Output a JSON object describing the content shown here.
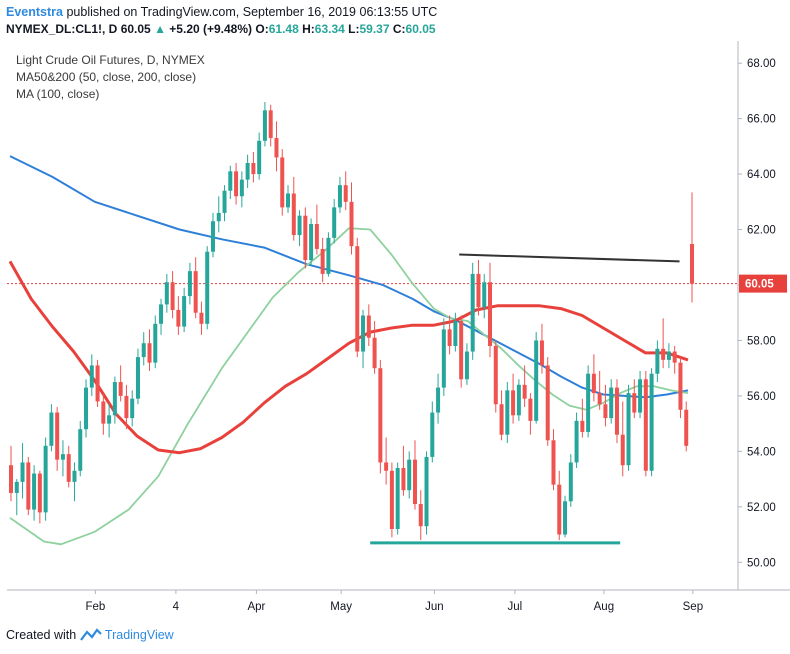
{
  "header": {
    "author": "Eventstra",
    "published": "published on TradingView.com, September 16, 2019 06:13:55 UTC",
    "symbol": "NYMEX_DL:CL1!, D",
    "last": "60.05",
    "change_arrow": "▲",
    "change": "+5.20 (+9.48%)",
    "o_label": "O:",
    "o_value": "61.48",
    "h_label": "H:",
    "h_value": "63.34",
    "l_label": "L:",
    "l_value": "59.37",
    "c_label": "C:",
    "c_value": "60.05"
  },
  "legend": {
    "title": "Light Crude Oil Futures, D, NYMEX",
    "ma50_200": "MA50&200 (50, close, 200, close)",
    "ma100": "MA (100, close)"
  },
  "footer": {
    "created_with": "Created with",
    "brand": "TradingView"
  },
  "colors": {
    "up": "#26a69a",
    "down": "#ef5350",
    "ma50": "#8fd19e",
    "ma200": "#2e7fd8",
    "ma100": "#e8413c",
    "resistance": "#333333",
    "support": "#26a69a",
    "price_line": "#e8413c"
  },
  "chart_data": {
    "type": "candlestick",
    "title": "Light Crude Oil Futures, D, NYMEX",
    "ylim": [
      49,
      68.8
    ],
    "y_ticks": [
      "68.00",
      "66.00",
      "64.00",
      "62.00",
      "60.00",
      "58.00",
      "56.00",
      "54.00",
      "52.00",
      "50.00"
    ],
    "x_ticks": [
      {
        "label": "Feb",
        "t": 10
      },
      {
        "label": "4",
        "t": 29
      },
      {
        "label": "Apr",
        "t": 48
      },
      {
        "label": "May",
        "t": 68
      },
      {
        "label": "Jun",
        "t": 90
      },
      {
        "label": "Jul",
        "t": 109
      },
      {
        "label": "Aug",
        "t": 130
      },
      {
        "label": "Sep",
        "t": 151
      }
    ],
    "last_price": 60.05,
    "last_price_label": "60.05",
    "series": [
      {
        "name": "MA 200",
        "points": [
          [
            0,
            64.65
          ],
          [
            10,
            63.9
          ],
          [
            20,
            63.0
          ],
          [
            30,
            62.5
          ],
          [
            40,
            62.0
          ],
          [
            50,
            61.65
          ],
          [
            60,
            61.35
          ],
          [
            70,
            60.75
          ],
          [
            80,
            60.35
          ],
          [
            88,
            60.0
          ],
          [
            95,
            59.5
          ],
          [
            100,
            59.05
          ],
          [
            105,
            58.75
          ],
          [
            110,
            58.35
          ],
          [
            115,
            57.95
          ],
          [
            120,
            57.55
          ],
          [
            125,
            57.15
          ],
          [
            130,
            56.7
          ],
          [
            135,
            56.3
          ],
          [
            140,
            56.05
          ],
          [
            145,
            56.0
          ],
          [
            150,
            55.95
          ],
          [
            155,
            56.05
          ],
          [
            160,
            56.2
          ]
        ]
      },
      {
        "name": "MA 50",
        "points": [
          [
            0,
            51.6
          ],
          [
            8,
            50.75
          ],
          [
            12,
            50.65
          ],
          [
            20,
            51.1
          ],
          [
            28,
            51.9
          ],
          [
            35,
            53.1
          ],
          [
            42,
            55.0
          ],
          [
            50,
            57.0
          ],
          [
            58,
            58.7
          ],
          [
            62,
            59.55
          ],
          [
            68,
            60.45
          ],
          [
            74,
            61.2
          ],
          [
            80,
            62.05
          ],
          [
            85,
            62.0
          ],
          [
            90,
            61.1
          ],
          [
            95,
            60.05
          ],
          [
            100,
            59.15
          ],
          [
            104,
            58.8
          ],
          [
            108,
            58.7
          ],
          [
            112,
            58.2
          ],
          [
            116,
            57.7
          ],
          [
            120,
            57.1
          ],
          [
            124,
            56.55
          ],
          [
            128,
            56.05
          ],
          [
            132,
            55.65
          ],
          [
            136,
            55.5
          ],
          [
            140,
            55.75
          ],
          [
            144,
            56.1
          ],
          [
            148,
            56.35
          ],
          [
            152,
            56.35
          ],
          [
            156,
            56.2
          ],
          [
            160,
            56.1
          ]
        ]
      },
      {
        "name": "MA 100",
        "points": [
          [
            0,
            60.85
          ],
          [
            5,
            59.5
          ],
          [
            10,
            58.5
          ],
          [
            15,
            57.6
          ],
          [
            20,
            56.55
          ],
          [
            25,
            55.35
          ],
          [
            30,
            54.55
          ],
          [
            35,
            54.05
          ],
          [
            40,
            53.95
          ],
          [
            45,
            54.1
          ],
          [
            50,
            54.5
          ],
          [
            55,
            55.05
          ],
          [
            60,
            55.75
          ],
          [
            65,
            56.35
          ],
          [
            70,
            56.8
          ],
          [
            75,
            57.35
          ],
          [
            80,
            57.9
          ],
          [
            85,
            58.3
          ],
          [
            90,
            58.45
          ],
          [
            95,
            58.55
          ],
          [
            100,
            58.55
          ],
          [
            105,
            58.7
          ],
          [
            110,
            59.1
          ],
          [
            115,
            59.25
          ],
          [
            120,
            59.25
          ],
          [
            125,
            59.25
          ],
          [
            130,
            59.15
          ],
          [
            135,
            58.9
          ],
          [
            140,
            58.45
          ],
          [
            145,
            58.0
          ],
          [
            150,
            57.55
          ],
          [
            155,
            57.55
          ],
          [
            158,
            57.4
          ],
          [
            160,
            57.3
          ]
        ]
      }
    ],
    "resistance": {
      "t1": 106,
      "t2": 158,
      "y1": 61.1,
      "y2": 60.85
    },
    "support": {
      "t1": 85,
      "t2": 144,
      "y": 50.7
    },
    "ohlc": [
      [
        53.5,
        54.2,
        52.2,
        52.5
      ],
      [
        52.5,
        53.0,
        51.7,
        52.9
      ],
      [
        52.9,
        54.3,
        52.3,
        53.6
      ],
      [
        53.6,
        53.8,
        51.7,
        51.9
      ],
      [
        51.9,
        53.5,
        51.5,
        53.2
      ],
      [
        53.2,
        53.3,
        51.4,
        51.8
      ],
      [
        51.8,
        54.5,
        51.5,
        54.2
      ],
      [
        54.2,
        55.7,
        54.0,
        55.4
      ],
      [
        55.4,
        55.6,
        53.3,
        53.7
      ],
      [
        53.7,
        54.4,
        53.1,
        53.9
      ],
      [
        53.9,
        54.2,
        52.7,
        52.9
      ],
      [
        52.9,
        53.6,
        52.2,
        53.3
      ],
      [
        53.3,
        55.1,
        53.1,
        54.8
      ],
      [
        54.8,
        56.6,
        54.5,
        56.3
      ],
      [
        56.3,
        57.5,
        56.0,
        57.1
      ],
      [
        57.1,
        57.3,
        55.6,
        55.8
      ],
      [
        55.8,
        56.1,
        54.6,
        55.0
      ],
      [
        55.0,
        55.7,
        54.5,
        55.3
      ],
      [
        55.3,
        56.7,
        55.0,
        56.5
      ],
      [
        56.5,
        57.1,
        55.8,
        56.0
      ],
      [
        56.0,
        56.4,
        54.8,
        55.2
      ],
      [
        55.2,
        56.2,
        54.9,
        55.9
      ],
      [
        55.9,
        57.7,
        55.7,
        57.4
      ],
      [
        57.4,
        58.3,
        57.1,
        57.9
      ],
      [
        57.9,
        58.4,
        56.9,
        57.2
      ],
      [
        57.2,
        58.9,
        57.0,
        58.6
      ],
      [
        58.6,
        59.5,
        58.2,
        59.3
      ],
      [
        59.3,
        60.4,
        59.0,
        60.1
      ],
      [
        60.1,
        60.5,
        58.8,
        59.1
      ],
      [
        59.1,
        59.6,
        58.2,
        58.5
      ],
      [
        58.5,
        59.9,
        58.3,
        59.6
      ],
      [
        59.6,
        60.8,
        59.3,
        60.5
      ],
      [
        60.5,
        61.0,
        58.8,
        59.0
      ],
      [
        59.0,
        59.4,
        58.2,
        58.6
      ],
      [
        58.6,
        61.4,
        58.4,
        61.2
      ],
      [
        61.2,
        62.6,
        61.0,
        62.3
      ],
      [
        62.3,
        63.2,
        61.9,
        62.6
      ],
      [
        62.6,
        63.6,
        62.3,
        63.4
      ],
      [
        63.4,
        64.3,
        63.1,
        64.1
      ],
      [
        64.1,
        64.4,
        62.9,
        63.2
      ],
      [
        63.2,
        64.1,
        62.8,
        63.8
      ],
      [
        63.8,
        64.7,
        63.5,
        64.4
      ],
      [
        64.4,
        64.8,
        63.7,
        64.0
      ],
      [
        64.0,
        65.5,
        63.8,
        65.2
      ],
      [
        65.2,
        66.6,
        65.0,
        66.3
      ],
      [
        66.3,
        66.5,
        65.0,
        65.3
      ],
      [
        65.3,
        65.9,
        64.1,
        64.6
      ],
      [
        64.6,
        64.9,
        62.5,
        62.8
      ],
      [
        62.8,
        63.6,
        62.6,
        63.3
      ],
      [
        63.3,
        63.9,
        61.6,
        61.8
      ],
      [
        61.8,
        62.7,
        61.4,
        62.5
      ],
      [
        62.5,
        62.8,
        60.6,
        60.9
      ],
      [
        60.9,
        62.4,
        60.7,
        62.2
      ],
      [
        62.2,
        62.9,
        61.1,
        61.3
      ],
      [
        61.3,
        61.7,
        60.1,
        60.4
      ],
      [
        60.4,
        61.9,
        60.3,
        61.7
      ],
      [
        61.7,
        63.1,
        61.5,
        62.8
      ],
      [
        62.8,
        63.9,
        62.6,
        63.6
      ],
      [
        63.6,
        64.1,
        62.7,
        63.0
      ],
      [
        63.0,
        63.7,
        61.1,
        61.4
      ],
      [
        61.4,
        61.7,
        57.4,
        57.6
      ],
      [
        57.6,
        59.1,
        57.0,
        58.9
      ],
      [
        58.9,
        59.3,
        57.8,
        58.1
      ],
      [
        58.1,
        58.7,
        56.8,
        57.0
      ],
      [
        57.0,
        57.3,
        53.2,
        53.6
      ],
      [
        53.6,
        54.5,
        52.8,
        53.3
      ],
      [
        53.3,
        53.6,
        50.9,
        51.2
      ],
      [
        51.2,
        53.6,
        51.0,
        53.4
      ],
      [
        53.4,
        54.2,
        52.4,
        52.6
      ],
      [
        52.6,
        54.0,
        52.3,
        53.7
      ],
      [
        53.7,
        54.4,
        51.9,
        52.1
      ],
      [
        52.1,
        52.6,
        50.8,
        51.3
      ],
      [
        51.3,
        54.0,
        51.0,
        53.8
      ],
      [
        53.8,
        55.8,
        53.6,
        55.4
      ],
      [
        55.4,
        56.8,
        55.0,
        56.3
      ],
      [
        56.3,
        58.8,
        56.0,
        58.4
      ],
      [
        58.4,
        58.9,
        57.5,
        57.8
      ],
      [
        57.8,
        59.0,
        57.6,
        58.7
      ],
      [
        58.7,
        58.9,
        56.3,
        56.6
      ],
      [
        56.6,
        57.9,
        56.4,
        57.6
      ],
      [
        57.6,
        60.8,
        57.3,
        60.4
      ],
      [
        60.4,
        60.9,
        58.9,
        59.2
      ],
      [
        59.2,
        60.4,
        58.8,
        60.1
      ],
      [
        60.1,
        60.8,
        57.4,
        57.8
      ],
      [
        57.8,
        58.0,
        55.4,
        55.7
      ],
      [
        55.7,
        56.2,
        54.4,
        54.6
      ],
      [
        54.6,
        56.5,
        54.3,
        56.2
      ],
      [
        56.2,
        56.8,
        55.0,
        55.3
      ],
      [
        55.3,
        56.6,
        55.1,
        56.4
      ],
      [
        56.4,
        57.1,
        55.6,
        55.9
      ],
      [
        55.9,
        56.1,
        54.6,
        55.1
      ],
      [
        55.1,
        58.3,
        55.0,
        58.0
      ],
      [
        58.0,
        58.6,
        56.8,
        57.1
      ],
      [
        57.1,
        57.4,
        54.2,
        54.4
      ],
      [
        54.4,
        54.8,
        52.6,
        52.8
      ],
      [
        52.8,
        53.3,
        50.8,
        51.0
      ],
      [
        51.0,
        52.4,
        50.9,
        52.2
      ],
      [
        52.2,
        53.9,
        52.0,
        53.6
      ],
      [
        53.6,
        55.4,
        53.4,
        55.1
      ],
      [
        55.1,
        55.9,
        54.5,
        54.7
      ],
      [
        54.7,
        57.1,
        54.5,
        56.8
      ],
      [
        56.8,
        57.5,
        55.8,
        56.1
      ],
      [
        56.1,
        56.9,
        55.5,
        55.7
      ],
      [
        55.7,
        56.4,
        54.9,
        55.2
      ],
      [
        55.2,
        56.6,
        55.0,
        56.3
      ],
      [
        56.3,
        56.6,
        54.3,
        54.6
      ],
      [
        54.6,
        55.8,
        53.1,
        53.5
      ],
      [
        53.5,
        56.4,
        53.3,
        56.1
      ],
      [
        56.1,
        56.6,
        55.2,
        55.4
      ],
      [
        55.4,
        56.9,
        55.2,
        56.6
      ],
      [
        56.6,
        56.9,
        53.1,
        53.3
      ],
      [
        53.3,
        57.0,
        53.1,
        56.8
      ],
      [
        56.8,
        58.0,
        56.5,
        57.7
      ],
      [
        57.7,
        58.8,
        57.0,
        57.3
      ],
      [
        57.3,
        57.9,
        57.0,
        57.6
      ],
      [
        57.6,
        57.8,
        56.8,
        57.2
      ],
      [
        57.2,
        57.4,
        55.2,
        55.5
      ],
      [
        55.5,
        55.8,
        54.0,
        54.2
      ],
      [
        61.48,
        63.34,
        59.37,
        60.05
      ]
    ],
    "dates_start_t": 0,
    "ohlc_t_step": 1.14
  }
}
